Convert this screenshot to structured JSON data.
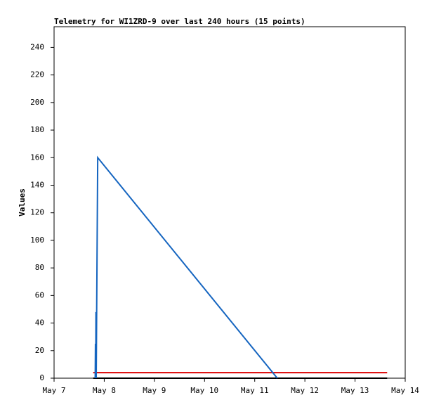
{
  "chart_data": {
    "type": "line",
    "title": "Telemetry for WI1ZRD-9 over last 240 hours (15 points)",
    "y_label": "Values",
    "xlim": [
      7,
      14
    ],
    "xticks": [
      {
        "value": 7,
        "label": "May 7"
      },
      {
        "value": 8,
        "label": "May 8"
      },
      {
        "value": 9,
        "label": "May 9"
      },
      {
        "value": 10,
        "label": "May 10"
      },
      {
        "value": 11,
        "label": "May 11"
      },
      {
        "value": 12,
        "label": "May 12"
      },
      {
        "value": 13,
        "label": "May 13"
      },
      {
        "value": 14,
        "label": "May 14"
      }
    ],
    "ylim": [
      0,
      255
    ],
    "yticks": [
      0,
      20,
      40,
      60,
      80,
      100,
      120,
      140,
      160,
      180,
      200,
      220,
      240
    ],
    "series": [
      {
        "name": "black",
        "color": "#000000",
        "x": [
          7.78,
          13.64
        ],
        "values": [
          0,
          0
        ]
      },
      {
        "name": "red",
        "color": "#dd0000",
        "x": [
          7.78,
          13.64
        ],
        "values": [
          4,
          4
        ]
      },
      {
        "name": "blue",
        "color": "#1565c0",
        "x": [
          7.82,
          7.825,
          7.83,
          7.835,
          7.84,
          7.87,
          11.45
        ],
        "values": [
          0,
          25,
          0,
          48,
          0,
          160,
          0
        ]
      }
    ]
  }
}
